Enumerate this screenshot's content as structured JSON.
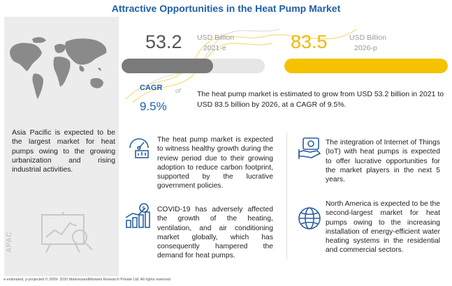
{
  "title": "Attractive Opportunities in the Heat Pump Market",
  "left_panel": {
    "text": "Asia Pacific is expected to be the largest market for heat pumps owing to the growing urbanization and rising industrial activities.",
    "region": "APAC"
  },
  "stats": {
    "start": {
      "value": "53.2",
      "unit": "USD Billion",
      "year": "2021-e",
      "bar_fill": 0.64
    },
    "end": {
      "value": "83.5",
      "unit": "USD Billion",
      "year": "2026-p",
      "bar_fill": 1.0
    }
  },
  "cagr": {
    "label": "CAGR",
    "value": "9.5%",
    "of": "of",
    "description": "The heat pump market is estimated to grow from USD 53.2 billion in 2021 to USD 83.5 billion by 2026, at a CAGR of 9.5%."
  },
  "cards": [
    {
      "icon": "gauge-chart-icon",
      "text": "The heat pump market is expected to witness healthy growth during the review period due to their growing adoption to reduce carbon footprint, supported by the lucrative government policies."
    },
    {
      "icon": "iot-money-icon",
      "text": "The integration of Internet of Things (IoT) with heat pumps is expected to offer lucrative opportunities for the market players in the next 5 years."
    },
    {
      "icon": "growth-chart-icon",
      "text": "COVID-19 has adversely affected the growth of the heating, ventilation, and air conditioning market globally, which has consequently hampered the demand for heat pumps."
    },
    {
      "icon": "globe-icon",
      "text": "North America is expected to be the second-largest market for heat pumps owing to the increasing installation of energy-efficient water heating systems in the residential and commercial sectors."
    }
  ],
  "footer": "e-estimated, p-projected © 2009- 2020 MarketsandMarkets Research Private Ltd. All rights reserved",
  "colors": {
    "accent_blue": "#1f5fa8",
    "highlight_yellow": "#f5c200",
    "bar_dark": "#7a7a7a",
    "panel_gray": "#ececec",
    "icon_blue": "#2a5fa0"
  }
}
